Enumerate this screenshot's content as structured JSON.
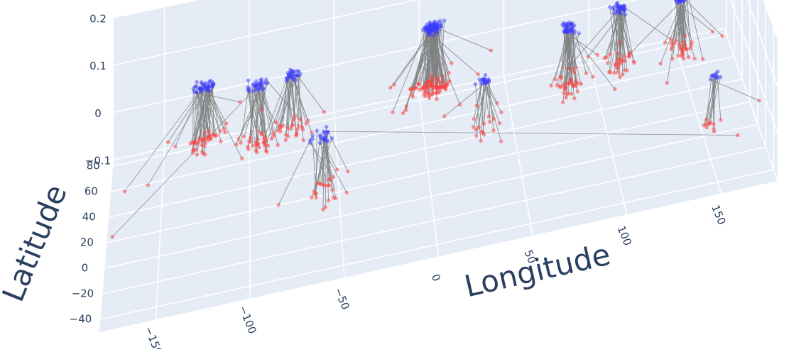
{
  "chart_data": {
    "type": "scatter3d",
    "title": "",
    "axes": {
      "x": {
        "label": "Longitude",
        "range": [
          -180,
          180
        ],
        "ticks": [
          -150,
          -100,
          -50,
          0,
          50,
          100,
          150
        ]
      },
      "y": {
        "label": "Latitude",
        "range": [
          -50,
          85
        ],
        "ticks": [
          -40,
          -20,
          0,
          20,
          40,
          60,
          80
        ]
      },
      "z": {
        "label": "",
        "range": [
          -0.1,
          0.2
        ],
        "ticks": [
          -0.1,
          0,
          0.1,
          0.2
        ],
        "tick_text": [
          "−0.1",
          "0",
          "0.1",
          "0.2"
        ]
      }
    },
    "grid": true,
    "colors": {
      "background_panel": "#e5ecf6",
      "grid": "#ffffff",
      "line": "#808080",
      "lower_marker": "#ff4040",
      "upper_marker": "#3c3cff",
      "tick_text": "#2a3f5f"
    },
    "series": [
      {
        "type": "lines",
        "description_of_encoding": "each segment connects a point at z = 0 (red) to a point at z ≈ 0.1 (blue)"
      }
    ],
    "clusters": [
      {
        "lon": -125,
        "lat": 47,
        "n": 45,
        "lonSpread": 16,
        "latSpread": 10,
        "z": 0.115
      },
      {
        "lon": -95,
        "lat": 38,
        "n": 35,
        "lonSpread": 16,
        "latSpread": 10,
        "z": 0.115
      },
      {
        "lon": -75,
        "lat": 42,
        "n": 30,
        "lonSpread": 14,
        "latSpread": 10,
        "z": 0.11
      },
      {
        "lon": -60,
        "lat": -15,
        "n": 25,
        "lonSpread": 15,
        "latSpread": 20,
        "z": 0.115
      },
      {
        "lon": 5,
        "lat": 50,
        "n": 90,
        "lonSpread": 14,
        "latSpread": 9,
        "z": 0.125
      },
      {
        "lon": 30,
        "lat": 8,
        "n": 20,
        "lonSpread": 12,
        "latSpread": 10,
        "z": 0.1
      },
      {
        "lon": 80,
        "lat": 28,
        "n": 40,
        "lonSpread": 12,
        "latSpread": 12,
        "z": 0.12
      },
      {
        "lon": 110,
        "lat": 35,
        "n": 35,
        "lonSpread": 13,
        "latSpread": 12,
        "z": 0.12
      },
      {
        "lon": 145,
        "lat": 36,
        "n": 35,
        "lonSpread": 10,
        "latSpread": 9,
        "z": 0.11
      },
      {
        "lon": 150,
        "lat": -30,
        "n": 12,
        "lonSpread": 10,
        "latSpread": 6,
        "z": 0.1
      }
    ],
    "outliers": [
      {
        "lon": -170,
        "lat": 20,
        "z": 0
      },
      {
        "lon": -157,
        "lat": 21,
        "z": 0
      },
      {
        "lon": -175,
        "lat": -14,
        "z": 0
      },
      {
        "lon": 160,
        "lat": -44,
        "z": 0
      }
    ]
  }
}
